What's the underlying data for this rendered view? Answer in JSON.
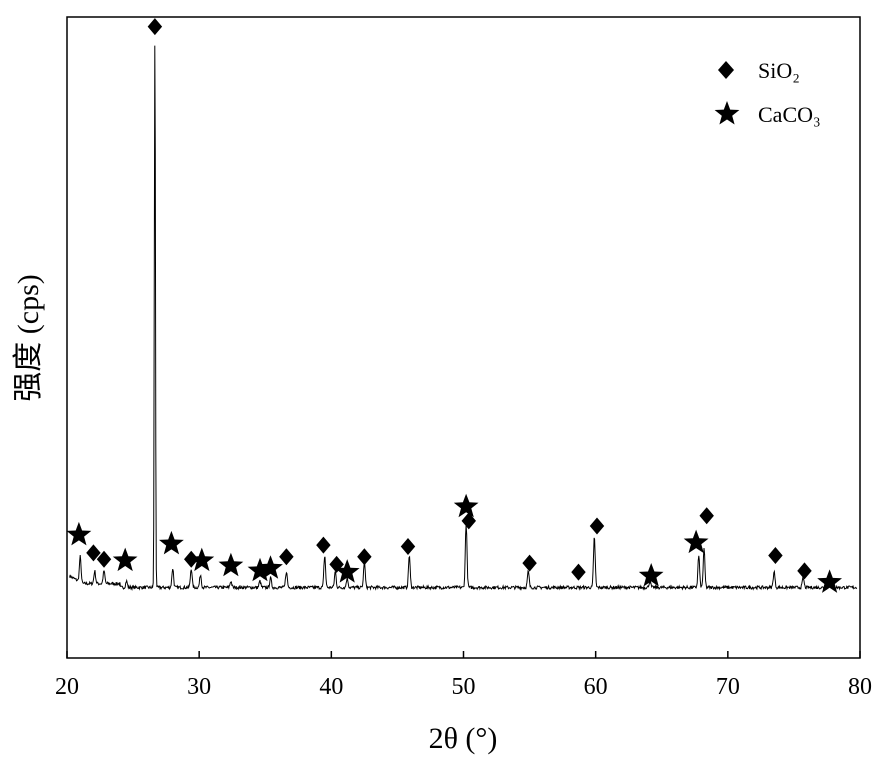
{
  "chart_data": {
    "type": "line",
    "title": "",
    "xlabel": "2θ (°)",
    "ylabel": "强度 (cps)",
    "xlim": [
      20,
      80
    ],
    "ylim": [
      0,
      100
    ],
    "xticks": [
      20,
      30,
      40,
      50,
      60,
      70,
      80
    ],
    "grid": false,
    "legend_position": "top-right",
    "legend": [
      {
        "name": "SiO₂",
        "marker": "diamond-icon"
      },
      {
        "name": "CaCO₃",
        "marker": "star-icon"
      }
    ],
    "baseline": 11,
    "peaks": [
      {
        "x": 21.0,
        "h": 4
      },
      {
        "x": 22.1,
        "h": 2
      },
      {
        "x": 22.8,
        "h": 2
      },
      {
        "x": 24.5,
        "h": 1
      },
      {
        "x": 26.65,
        "h": 87
      },
      {
        "x": 28.0,
        "h": 3
      },
      {
        "x": 29.4,
        "h": 3
      },
      {
        "x": 30.1,
        "h": 2
      },
      {
        "x": 32.4,
        "h": 1
      },
      {
        "x": 34.6,
        "h": 1
      },
      {
        "x": 35.4,
        "h": 1.5
      },
      {
        "x": 36.6,
        "h": 2.5
      },
      {
        "x": 39.5,
        "h": 5
      },
      {
        "x": 40.3,
        "h": 2.5
      },
      {
        "x": 41.2,
        "h": 1.5
      },
      {
        "x": 42.5,
        "h": 4
      },
      {
        "x": 45.9,
        "h": 5
      },
      {
        "x": 50.2,
        "h": 10
      },
      {
        "x": 54.9,
        "h": 2.5
      },
      {
        "x": 59.9,
        "h": 8
      },
      {
        "x": 64.1,
        "h": 1
      },
      {
        "x": 67.8,
        "h": 5
      },
      {
        "x": 68.2,
        "h": 6
      },
      {
        "x": 73.5,
        "h": 2.5
      },
      {
        "x": 75.7,
        "h": 1.5
      },
      {
        "x": 77.7,
        "h": 0.8
      }
    ],
    "series": [
      {
        "name": "SiO₂",
        "marker": "diamond",
        "points": [
          {
            "x": 26.65,
            "y": 98.5
          },
          {
            "x": 22.0,
            "y": 16.4
          },
          {
            "x": 22.8,
            "y": 15.4
          },
          {
            "x": 29.4,
            "y": 15.4
          },
          {
            "x": 36.6,
            "y": 15.8
          },
          {
            "x": 39.4,
            "y": 17.6
          },
          {
            "x": 40.4,
            "y": 14.6
          },
          {
            "x": 42.5,
            "y": 15.8
          },
          {
            "x": 45.8,
            "y": 17.4
          },
          {
            "x": 50.4,
            "y": 21.4
          },
          {
            "x": 55.0,
            "y": 14.8
          },
          {
            "x": 58.7,
            "y": 13.4
          },
          {
            "x": 60.1,
            "y": 20.6
          },
          {
            "x": 68.4,
            "y": 22.2
          },
          {
            "x": 73.6,
            "y": 16.0
          },
          {
            "x": 75.8,
            "y": 13.6
          }
        ]
      },
      {
        "name": "CaCO₃",
        "marker": "star",
        "points": [
          {
            "x": 20.9,
            "y": 19.2
          },
          {
            "x": 24.4,
            "y": 15.2
          },
          {
            "x": 27.9,
            "y": 17.8
          },
          {
            "x": 30.2,
            "y": 15.2
          },
          {
            "x": 32.4,
            "y": 14.4
          },
          {
            "x": 34.6,
            "y": 13.6
          },
          {
            "x": 35.4,
            "y": 14.0
          },
          {
            "x": 41.2,
            "y": 13.4
          },
          {
            "x": 50.2,
            "y": 23.6
          },
          {
            "x": 64.2,
            "y": 12.8
          },
          {
            "x": 67.6,
            "y": 18.0
          },
          {
            "x": 77.7,
            "y": 11.8
          }
        ]
      }
    ]
  }
}
